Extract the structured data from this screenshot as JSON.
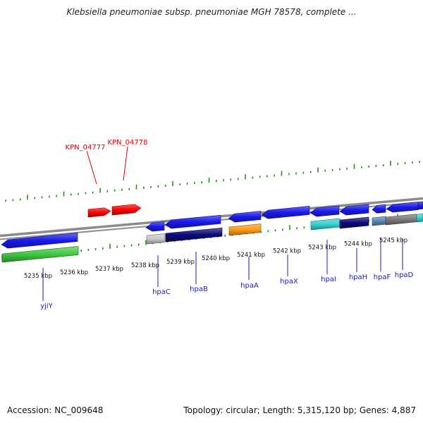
{
  "title": "Klebsiella pneumoniae subsp. pneumoniae MGH 78578, complete ...",
  "footer": {
    "accession_label": "Accession: NC_009648",
    "topology_label": "Topology: circular; Length: 5,315,120 bp; Genes: 4,887"
  },
  "colors": {
    "backbone": "#8c8c8c",
    "tick": "#2e8b22",
    "red_gene": "#ff0000",
    "blue_gene": "#1a1aee",
    "navy_gene": "#0a0a7a",
    "green_gene": "#3fc83f",
    "orange_gene": "#ff9a14",
    "cyan_gene": "#33d4d4",
    "gray_gene": "#7a7a7a",
    "steel_gene": "#5b86b8",
    "label_blue": "#1a1ab0",
    "label_red": "#e00000"
  },
  "scale_labels": [
    "5235 kbp",
    "5236 kbp",
    "5237 kbp",
    "5238 kbp",
    "5239 kbp",
    "5240 kbp",
    "5241 kbp",
    "5242 kbp",
    "5243 kbp",
    "5244 kbp",
    "5245 kbp"
  ],
  "gene_labels_top": [
    "KPN_04777",
    "KPN_04778"
  ],
  "gene_labels_bottom": [
    "yjiY",
    "hpaC",
    "hpaB",
    "hpaA",
    "hpaX",
    "hpaI",
    "hpaH",
    "hpaF",
    "hpaD"
  ]
}
